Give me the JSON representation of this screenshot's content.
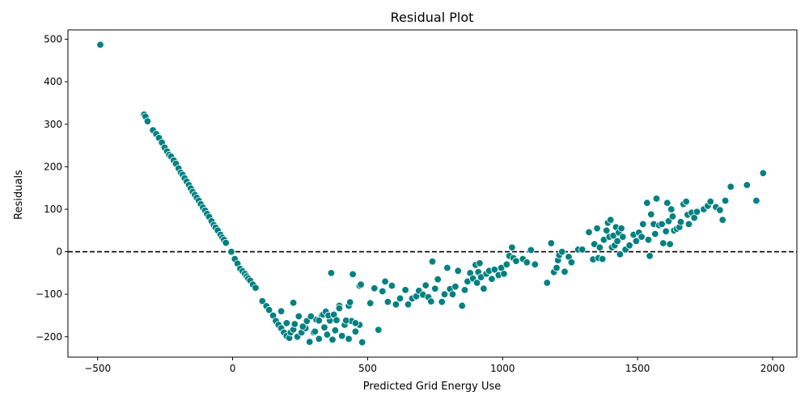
{
  "chart_data": {
    "type": "scatter",
    "title": "Residual Plot",
    "xlabel": "Predicted Grid Energy Use",
    "ylabel": "Residuals",
    "xlim": [
      -610,
      2090
    ],
    "ylim": [
      -248,
      522
    ],
    "xticks": [
      -500,
      0,
      500,
      1000,
      1500,
      2000
    ],
    "yticks": [
      -200,
      -100,
      0,
      100,
      200,
      300,
      400,
      500
    ],
    "xtick_labels": [
      "−500",
      "0",
      "500",
      "1000",
      "1500",
      "2000"
    ],
    "ytick_labels": [
      "−200",
      "−100",
      "0",
      "100",
      "200",
      "300",
      "400",
      "500"
    ],
    "grid": false,
    "reference_line": {
      "y": 0,
      "style": "dashed",
      "color": "#000000"
    },
    "marker_color": "#008080",
    "marker_edge": "#ffffff",
    "points": [
      [
        -490,
        487
      ],
      [
        -328,
        323
      ],
      [
        -323,
        318
      ],
      [
        -315,
        307
      ],
      [
        -295,
        286
      ],
      [
        -283,
        277
      ],
      [
        -273,
        268
      ],
      [
        -262,
        257
      ],
      [
        -252,
        245
      ],
      [
        -243,
        236
      ],
      [
        -235,
        228
      ],
      [
        -228,
        224
      ],
      [
        -218,
        215
      ],
      [
        -210,
        207
      ],
      [
        -200,
        196
      ],
      [
        -192,
        186
      ],
      [
        -185,
        181
      ],
      [
        -178,
        173
      ],
      [
        -170,
        165
      ],
      [
        -162,
        157
      ],
      [
        -155,
        149
      ],
      [
        -148,
        141
      ],
      [
        -140,
        134
      ],
      [
        -133,
        127
      ],
      [
        -125,
        120
      ],
      [
        -118,
        112
      ],
      [
        -110,
        104
      ],
      [
        -102,
        97
      ],
      [
        -95,
        89
      ],
      [
        -87,
        82
      ],
      [
        -78,
        72
      ],
      [
        -70,
        63
      ],
      [
        -63,
        57
      ],
      [
        -55,
        50
      ],
      [
        -45,
        40
      ],
      [
        -38,
        33
      ],
      [
        -32,
        28
      ],
      [
        -25,
        21
      ],
      [
        -5,
        0
      ],
      [
        8,
        -17
      ],
      [
        18,
        -28
      ],
      [
        28,
        -40
      ],
      [
        37,
        -46
      ],
      [
        45,
        -52
      ],
      [
        52,
        -58
      ],
      [
        58,
        -63
      ],
      [
        65,
        -68
      ],
      [
        75,
        -77
      ],
      [
        85,
        -85
      ],
      [
        110,
        -116
      ],
      [
        125,
        -128
      ],
      [
        135,
        -137
      ],
      [
        150,
        -150
      ],
      [
        160,
        -163
      ],
      [
        170,
        -172
      ],
      [
        180,
        -180
      ],
      [
        190,
        -190
      ],
      [
        200,
        -198
      ],
      [
        210,
        -203
      ],
      [
        180,
        -140
      ],
      [
        200,
        -168
      ],
      [
        215,
        -190
      ],
      [
        225,
        -183
      ],
      [
        240,
        -200
      ],
      [
        255,
        -190
      ],
      [
        270,
        -180
      ],
      [
        285,
        -212
      ],
      [
        300,
        -190
      ],
      [
        310,
        -160
      ],
      [
        320,
        -205
      ],
      [
        330,
        -150
      ],
      [
        340,
        -178
      ],
      [
        350,
        -195
      ],
      [
        360,
        -162
      ],
      [
        370,
        -207
      ],
      [
        380,
        -185
      ],
      [
        395,
        -127
      ],
      [
        405,
        -198
      ],
      [
        415,
        -172
      ],
      [
        430,
        -205
      ],
      [
        440,
        -163
      ],
      [
        455,
        -188
      ],
      [
        470,
        -172
      ],
      [
        480,
        -213
      ],
      [
        225,
        -120
      ],
      [
        230,
        -170
      ],
      [
        245,
        -152
      ],
      [
        260,
        -176
      ],
      [
        275,
        -163
      ],
      [
        290,
        -152
      ],
      [
        305,
        -188
      ],
      [
        320,
        -162
      ],
      [
        335,
        -148
      ],
      [
        345,
        -141
      ],
      [
        355,
        -150
      ],
      [
        365,
        -50
      ],
      [
        375,
        -148
      ],
      [
        385,
        -161
      ],
      [
        395,
        -133
      ],
      [
        420,
        -162
      ],
      [
        430,
        -127
      ],
      [
        435,
        -119
      ],
      [
        445,
        -53
      ],
      [
        455,
        -168
      ],
      [
        470,
        -80
      ],
      [
        475,
        -77
      ],
      [
        510,
        -121
      ],
      [
        525,
        -86
      ],
      [
        540,
        -184
      ],
      [
        555,
        -93
      ],
      [
        565,
        -70
      ],
      [
        575,
        -118
      ],
      [
        590,
        -80
      ],
      [
        605,
        -124
      ],
      [
        620,
        -110
      ],
      [
        640,
        -90
      ],
      [
        650,
        -124
      ],
      [
        665,
        -110
      ],
      [
        680,
        -105
      ],
      [
        690,
        -92
      ],
      [
        705,
        -101
      ],
      [
        715,
        -79
      ],
      [
        725,
        -107
      ],
      [
        735,
        -117
      ],
      [
        740,
        -23
      ],
      [
        750,
        -87
      ],
      [
        760,
        -65
      ],
      [
        775,
        -118
      ],
      [
        785,
        -100
      ],
      [
        795,
        -38
      ],
      [
        805,
        -88
      ],
      [
        815,
        -100
      ],
      [
        825,
        -82
      ],
      [
        835,
        -45
      ],
      [
        850,
        -127
      ],
      [
        860,
        -90
      ],
      [
        870,
        -70
      ],
      [
        880,
        -50
      ],
      [
        890,
        -63
      ],
      [
        900,
        -31
      ],
      [
        905,
        -73
      ],
      [
        910,
        -48
      ],
      [
        915,
        -27
      ],
      [
        920,
        -60
      ],
      [
        930,
        -87
      ],
      [
        940,
        -52
      ],
      [
        950,
        -45
      ],
      [
        960,
        -64
      ],
      [
        970,
        -42
      ],
      [
        985,
        -55
      ],
      [
        995,
        -38
      ],
      [
        1005,
        -52
      ],
      [
        1015,
        -30
      ],
      [
        1025,
        -10
      ],
      [
        1035,
        10
      ],
      [
        1040,
        -15
      ],
      [
        1050,
        -22
      ],
      [
        1075,
        -17
      ],
      [
        1090,
        -25
      ],
      [
        1105,
        4
      ],
      [
        1120,
        -30
      ],
      [
        1165,
        -73
      ],
      [
        1180,
        20
      ],
      [
        1190,
        -48
      ],
      [
        1200,
        -38
      ],
      [
        1205,
        -20
      ],
      [
        1210,
        -8
      ],
      [
        1220,
        0
      ],
      [
        1230,
        -47
      ],
      [
        1245,
        -12
      ],
      [
        1255,
        -25
      ],
      [
        1280,
        5
      ],
      [
        1295,
        5
      ],
      [
        1320,
        46
      ],
      [
        1335,
        -18
      ],
      [
        1340,
        18
      ],
      [
        1350,
        55
      ],
      [
        1355,
        -15
      ],
      [
        1360,
        10
      ],
      [
        1370,
        -17
      ],
      [
        1375,
        28
      ],
      [
        1385,
        50
      ],
      [
        1390,
        68
      ],
      [
        1395,
        35
      ],
      [
        1400,
        75
      ],
      [
        1405,
        10
      ],
      [
        1410,
        38
      ],
      [
        1415,
        15
      ],
      [
        1420,
        58
      ],
      [
        1425,
        25
      ],
      [
        1430,
        45
      ],
      [
        1435,
        -6
      ],
      [
        1440,
        55
      ],
      [
        1445,
        35
      ],
      [
        1455,
        5
      ],
      [
        1470,
        15
      ],
      [
        1485,
        40
      ],
      [
        1495,
        25
      ],
      [
        1505,
        45
      ],
      [
        1515,
        35
      ],
      [
        1520,
        65
      ],
      [
        1535,
        115
      ],
      [
        1540,
        28
      ],
      [
        1545,
        -10
      ],
      [
        1550,
        88
      ],
      [
        1560,
        65
      ],
      [
        1565,
        42
      ],
      [
        1570,
        125
      ],
      [
        1580,
        62
      ],
      [
        1590,
        65
      ],
      [
        1595,
        20
      ],
      [
        1605,
        48
      ],
      [
        1610,
        115
      ],
      [
        1615,
        72
      ],
      [
        1620,
        18
      ],
      [
        1625,
        100
      ],
      [
        1630,
        83
      ],
      [
        1635,
        50
      ],
      [
        1645,
        54
      ],
      [
        1655,
        58
      ],
      [
        1660,
        70
      ],
      [
        1670,
        112
      ],
      [
        1680,
        118
      ],
      [
        1685,
        87
      ],
      [
        1690,
        65
      ],
      [
        1700,
        92
      ],
      [
        1710,
        80
      ],
      [
        1720,
        94
      ],
      [
        1745,
        100
      ],
      [
        1760,
        108
      ],
      [
        1770,
        118
      ],
      [
        1790,
        105
      ],
      [
        1805,
        98
      ],
      [
        1815,
        75
      ],
      [
        1825,
        120
      ],
      [
        1845,
        153
      ],
      [
        1905,
        157
      ],
      [
        1940,
        120
      ],
      [
        1965,
        185
      ]
    ]
  }
}
